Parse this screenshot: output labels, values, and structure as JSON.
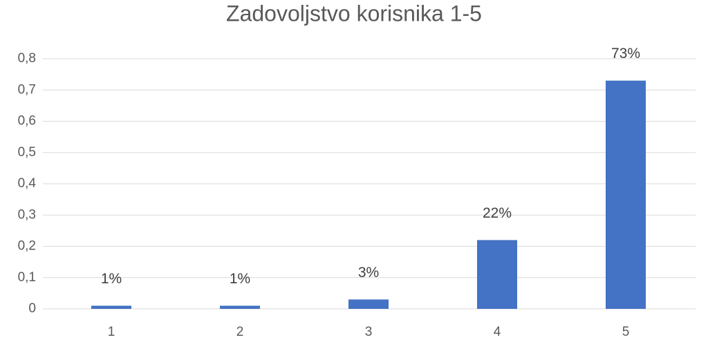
{
  "chart_data": {
    "type": "bar",
    "title": "Zadovoljstvo korisnika 1-5",
    "categories": [
      "1",
      "2",
      "3",
      "4",
      "5"
    ],
    "values": [
      0.01,
      0.01,
      0.03,
      0.22,
      0.73
    ],
    "value_labels": [
      "1%",
      "1%",
      "3%",
      "22%",
      "73%"
    ],
    "color": "#4472c4",
    "ylim": [
      0,
      0.8
    ],
    "yticks": [
      0,
      {
        "value": 0.1,
        "label": "0,1"
      },
      {
        "value": 0.2,
        "label": "0,2"
      },
      {
        "value": 0.3,
        "label": "0,3"
      },
      {
        "value": 0.4,
        "label": "0,4"
      },
      {
        "value": 0.5,
        "label": "0,5"
      },
      {
        "value": 0.6,
        "label": "0,6"
      },
      {
        "value": 0.7,
        "label": "0,7"
      },
      {
        "value": 0.8,
        "label": "0,8"
      }
    ],
    "grid": true
  }
}
